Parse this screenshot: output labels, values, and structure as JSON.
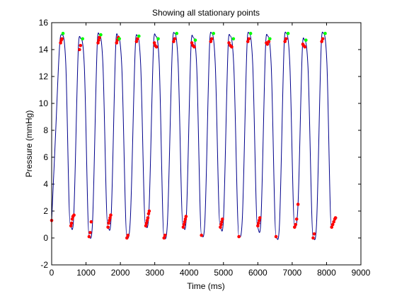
{
  "chart_data": {
    "type": "line",
    "title": "Showing all stationary points",
    "xlabel": "Time (ms)",
    "ylabel": "Pressure (mmHg)",
    "xlim": [
      0,
      9000
    ],
    "ylim": [
      -2,
      16
    ],
    "xticks": [
      0,
      1000,
      2000,
      3000,
      4000,
      5000,
      6000,
      7000,
      8000,
      9000
    ],
    "yticks": [
      -2,
      0,
      2,
      4,
      6,
      8,
      10,
      12,
      14,
      16
    ],
    "grid": false,
    "colors": {
      "line": "#00008b",
      "minima_markers": "#ff0000",
      "maxima_markers": "#00ff00"
    },
    "cycle_starts": [
      0,
      540,
      1090,
      1630,
      2190,
      2730,
      3270,
      3820,
      4360,
      4900,
      5450,
      5990,
      6530,
      7070,
      7610,
      8140
    ],
    "line_x": [
      0,
      110,
      240,
      300,
      410,
      540,
      640,
      780,
      850,
      950,
      1090,
      1190,
      1330,
      1390,
      1490,
      1630,
      1730,
      1870,
      1930,
      2040,
      2190,
      2290,
      2440,
      2500,
      2590,
      2730,
      2830,
      2970,
      3030,
      3130,
      3270,
      3370,
      3520,
      3580,
      3680,
      3820,
      3920,
      4060,
      4120,
      4220,
      4360,
      4460,
      4600,
      4660,
      4760,
      4900,
      5000,
      5140,
      5200,
      5300,
      5450,
      5550,
      5690,
      5750,
      5850,
      5990,
      6090,
      6230,
      6290,
      6390,
      6530,
      6630,
      6770,
      6830,
      6930,
      7070,
      7170,
      7300,
      7360,
      7460,
      7610,
      7710,
      7850,
      7910,
      8010,
      8140,
      8240,
      8310
    ],
    "line_y": [
      1.3,
      7.5,
      14.6,
      15.1,
      13.0,
      1.0,
      1.5,
      14.3,
      14.8,
      12.8,
      0.1,
      1.2,
      14.6,
      15.1,
      13.0,
      0.9,
      1.5,
      14.6,
      15.0,
      12.8,
      0.0,
      1.4,
      14.5,
      15.0,
      12.9,
      0.9,
      1.9,
      14.6,
      15.0,
      13.0,
      0.0,
      1.2,
      14.6,
      15.2,
      13.0,
      0.9,
      1.6,
      14.5,
      14.9,
      12.8,
      0.2,
      1.3,
      14.6,
      15.2,
      13.0,
      0.9,
      1.4,
      14.5,
      15.0,
      12.8,
      0.1,
      1.5,
      14.6,
      15.2,
      13.0,
      0.8,
      1.3,
      14.5,
      15.0,
      12.8,
      0.1,
      1.0,
      14.6,
      15.2,
      13.0,
      0.8,
      2.5,
      14.3,
      14.7,
      12.7,
      0.0,
      1.1,
      14.6,
      15.2,
      13.0,
      0.8,
      1.4,
      1.5
    ],
    "minima_markers": [
      [
        0,
        1.3
      ],
      [
        560,
        0.9
      ],
      [
        580,
        1.1
      ],
      [
        600,
        1.4
      ],
      [
        620,
        1.6
      ],
      [
        650,
        1.7
      ],
      [
        1090,
        0.1
      ],
      [
        1120,
        0.4
      ],
      [
        1150,
        1.2
      ],
      [
        1640,
        0.8
      ],
      [
        1660,
        1.1
      ],
      [
        1680,
        1.3
      ],
      [
        1700,
        1.5
      ],
      [
        1720,
        1.7
      ],
      [
        2190,
        0.0
      ],
      [
        2220,
        0.2
      ],
      [
        2740,
        0.9
      ],
      [
        2760,
        1.1
      ],
      [
        2780,
        1.3
      ],
      [
        2800,
        1.5
      ],
      [
        2820,
        1.8
      ],
      [
        2840,
        2.0
      ],
      [
        3270,
        0.0
      ],
      [
        3300,
        0.2
      ],
      [
        3830,
        0.8
      ],
      [
        3850,
        1.0
      ],
      [
        3870,
        1.2
      ],
      [
        3890,
        1.4
      ],
      [
        3910,
        1.6
      ],
      [
        4360,
        0.2
      ],
      [
        4910,
        0.8
      ],
      [
        4930,
        1.0
      ],
      [
        4950,
        1.2
      ],
      [
        4970,
        1.4
      ],
      [
        5450,
        0.1
      ],
      [
        6000,
        0.9
      ],
      [
        6020,
        1.1
      ],
      [
        6040,
        1.3
      ],
      [
        6060,
        1.5
      ],
      [
        6530,
        0.1
      ],
      [
        7070,
        0.8
      ],
      [
        7100,
        1.0
      ],
      [
        7130,
        1.4
      ],
      [
        7170,
        2.5
      ],
      [
        7610,
        0.0
      ],
      [
        7640,
        0.3
      ],
      [
        8150,
        0.8
      ],
      [
        8180,
        1.0
      ],
      [
        8210,
        1.2
      ],
      [
        8240,
        1.4
      ],
      [
        8260,
        1.5
      ]
    ],
    "maxima_markers": [
      [
        260,
        14.5
      ],
      [
        280,
        14.7
      ],
      [
        300,
        14.8
      ],
      [
        330,
        15.2
      ],
      [
        810,
        14.0
      ],
      [
        840,
        14.3
      ],
      [
        900,
        14.8
      ],
      [
        1350,
        14.5
      ],
      [
        1370,
        14.7
      ],
      [
        1390,
        14.9
      ],
      [
        1430,
        15.1
      ],
      [
        1890,
        14.5
      ],
      [
        1910,
        14.7
      ],
      [
        1940,
        14.9
      ],
      [
        1970,
        14.8
      ],
      [
        2470,
        14.6
      ],
      [
        2500,
        14.8
      ],
      [
        2540,
        15.0
      ],
      [
        2990,
        14.5
      ],
      [
        3010,
        14.3
      ],
      [
        3050,
        14.2
      ],
      [
        3100,
        14.8
      ],
      [
        3550,
        14.6
      ],
      [
        3580,
        14.8
      ],
      [
        3640,
        15.2
      ],
      [
        4080,
        14.5
      ],
      [
        4110,
        14.3
      ],
      [
        4150,
        14.2
      ],
      [
        4180,
        14.7
      ],
      [
        4630,
        14.6
      ],
      [
        4660,
        14.8
      ],
      [
        4710,
        15.2
      ],
      [
        5160,
        14.5
      ],
      [
        5200,
        14.3
      ],
      [
        5240,
        14.2
      ],
      [
        5290,
        14.8
      ],
      [
        5710,
        14.6
      ],
      [
        5740,
        14.8
      ],
      [
        5790,
        15.2
      ],
      [
        6250,
        14.5
      ],
      [
        6280,
        14.4
      ],
      [
        6320,
        14.6
      ],
      [
        6350,
        14.8
      ],
      [
        6790,
        14.6
      ],
      [
        6820,
        14.8
      ],
      [
        6880,
        15.2
      ],
      [
        7310,
        14.4
      ],
      [
        7330,
        14.3
      ],
      [
        7370,
        14.2
      ],
      [
        7400,
        14.7
      ],
      [
        7860,
        14.6
      ],
      [
        7890,
        14.8
      ],
      [
        7960,
        15.2
      ]
    ]
  }
}
